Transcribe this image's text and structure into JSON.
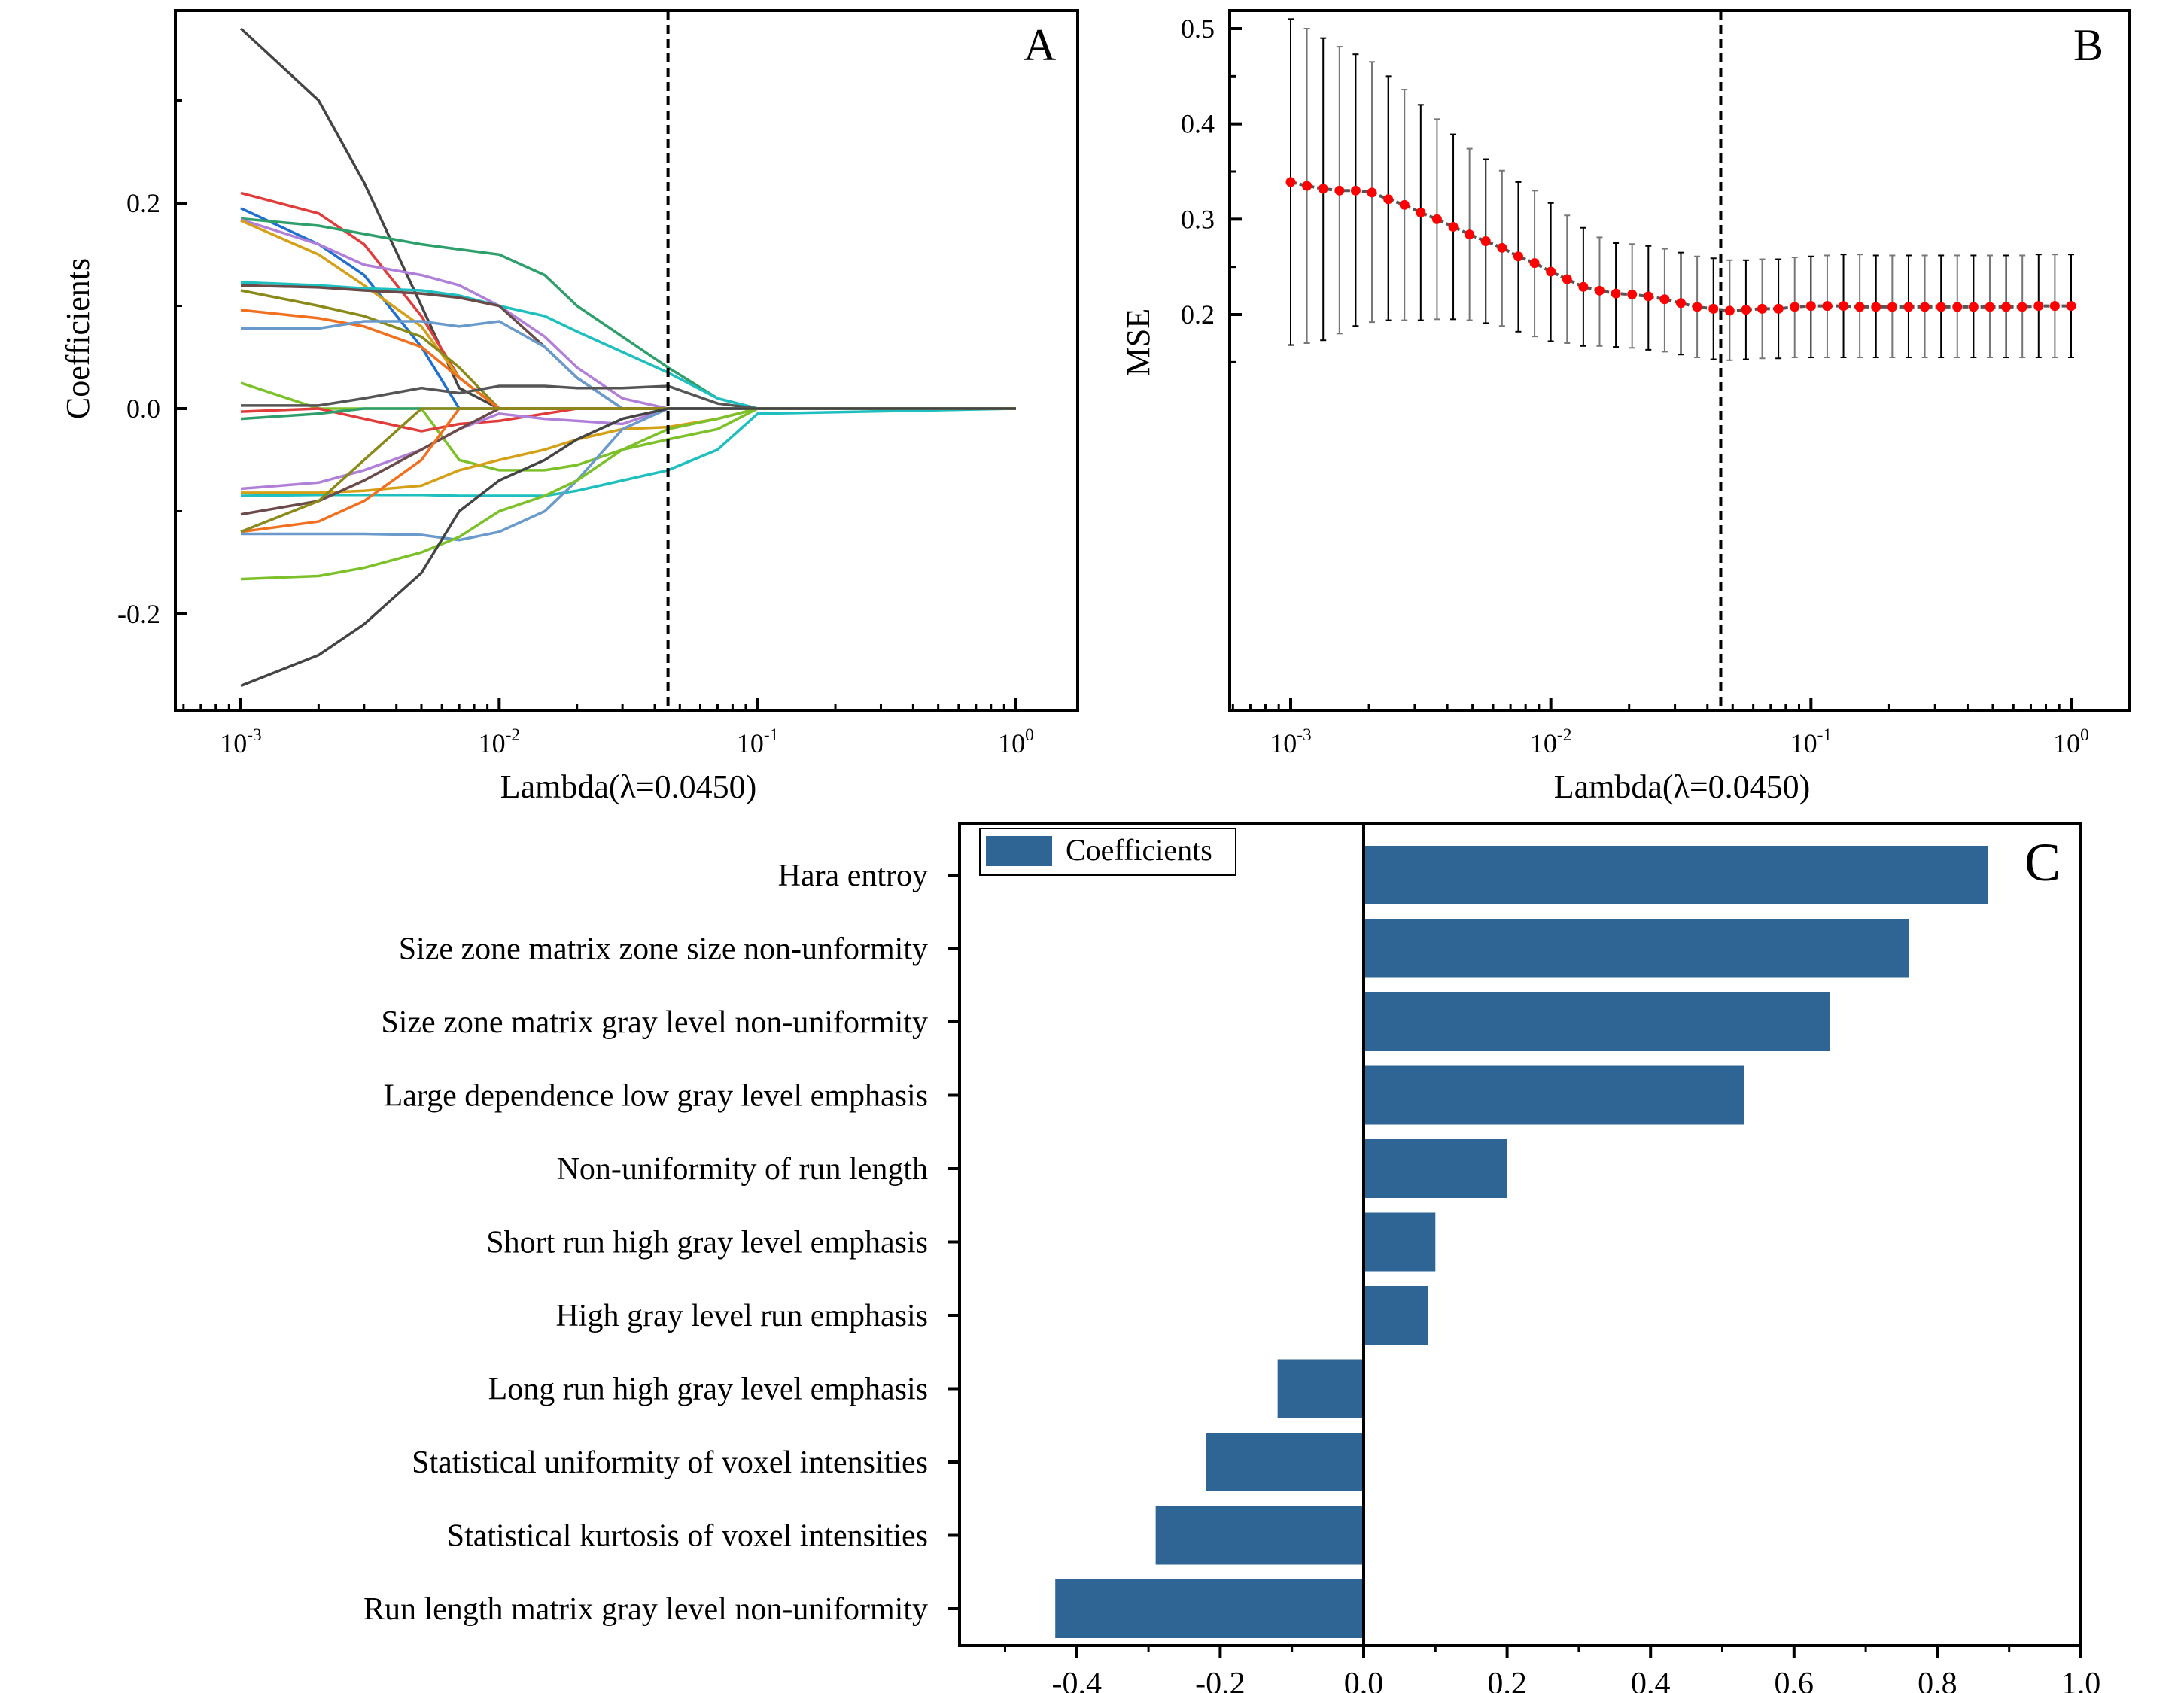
{
  "chart_data": [
    {
      "panel": "A",
      "type": "line",
      "title": "A",
      "xlabel": "Lambda(λ=0.0450)",
      "ylabel": "Coefficients",
      "xscale": "log",
      "xlim": [
        0.0006,
        1.6
      ],
      "ylim": [
        -0.3,
        0.4
      ],
      "x_ticks": [
        "10^-3",
        "10^-2",
        "10^-1",
        "10^0"
      ],
      "y_ticks": [
        "0.2",
        "0.0",
        "-0.2"
      ],
      "y_tick_values": [
        0.2,
        0.0,
        -0.2
      ],
      "vline": 0.045,
      "x": [
        0.001,
        0.002,
        0.003,
        0.005,
        0.007,
        0.01,
        0.015,
        0.02,
        0.03,
        0.045,
        0.07,
        0.1,
        1.0
      ],
      "series": [
        {
          "name": "s1",
          "color": "#444444",
          "values": [
            0.37,
            0.3,
            0.22,
            0.1,
            0.02,
            0.0,
            0.0,
            0.0,
            0.0,
            0.0,
            0.0,
            0.0,
            0.0
          ]
        },
        {
          "name": "s2",
          "color": "#e03c3c",
          "values": [
            0.21,
            0.19,
            0.16,
            0.09,
            0.03,
            0.0,
            0.0,
            0.0,
            0.0,
            0.0,
            0.0,
            0.0,
            0.0
          ]
        },
        {
          "name": "s3",
          "color": "#1f6fcf",
          "values": [
            0.195,
            0.16,
            0.13,
            0.06,
            0.0,
            0.0,
            0.0,
            0.0,
            0.0,
            0.0,
            0.0,
            0.0,
            0.0
          ]
        },
        {
          "name": "s4",
          "color": "#2e9e6a",
          "values": [
            0.185,
            0.178,
            0.17,
            0.16,
            0.155,
            0.15,
            0.13,
            0.1,
            0.07,
            0.04,
            0.01,
            0.0,
            0.0
          ]
        },
        {
          "name": "s5",
          "color": "#b07fd8",
          "values": [
            0.184,
            0.16,
            0.14,
            0.13,
            0.12,
            0.1,
            0.07,
            0.04,
            0.01,
            0.0,
            0.0,
            0.0,
            0.0
          ]
        },
        {
          "name": "s6",
          "color": "#d4a017",
          "values": [
            0.183,
            0.15,
            0.12,
            0.08,
            0.03,
            0.0,
            0.0,
            0.0,
            0.0,
            0.0,
            0.0,
            0.0,
            0.0
          ]
        },
        {
          "name": "s7",
          "color": "#1fbfbf",
          "values": [
            0.123,
            0.12,
            0.117,
            0.115,
            0.11,
            0.1,
            0.09,
            0.075,
            0.055,
            0.035,
            0.01,
            0.0,
            0.0
          ]
        },
        {
          "name": "s8",
          "color": "#6b4a4a",
          "values": [
            0.12,
            0.118,
            0.115,
            0.112,
            0.108,
            0.1,
            0.06,
            0.03,
            0.0,
            0.0,
            0.0,
            0.0,
            0.0
          ]
        },
        {
          "name": "s9",
          "color": "#8a8a1a",
          "values": [
            0.115,
            0.1,
            0.09,
            0.07,
            0.04,
            0.0,
            0.0,
            0.0,
            0.0,
            0.0,
            0.0,
            0.0,
            0.0
          ]
        },
        {
          "name": "s10",
          "color": "#f07020",
          "values": [
            0.096,
            0.088,
            0.08,
            0.06,
            0.03,
            0.0,
            0.0,
            0.0,
            0.0,
            0.0,
            0.0,
            0.0,
            0.0
          ]
        },
        {
          "name": "s11",
          "color": "#6a9acb",
          "values": [
            0.078,
            0.078,
            0.085,
            0.085,
            0.08,
            0.085,
            0.06,
            0.03,
            0.0,
            0.0,
            0.0,
            0.0,
            0.0
          ]
        },
        {
          "name": "s12",
          "color": "#7cc02a",
          "values": [
            0.025,
            0.0,
            0.0,
            0.0,
            -0.05,
            -0.06,
            -0.06,
            -0.055,
            -0.04,
            -0.03,
            -0.02,
            0.0,
            0.0
          ]
        },
        {
          "name": "s13",
          "color": "#555555",
          "values": [
            0.003,
            0.003,
            0.01,
            0.02,
            0.015,
            0.022,
            0.022,
            0.02,
            0.02,
            0.022,
            0.005,
            0.0,
            0.0
          ]
        },
        {
          "name": "s14",
          "color": "#e03c3c",
          "values": [
            -0.003,
            0.0,
            -0.01,
            -0.022,
            -0.015,
            -0.012,
            -0.005,
            0.0,
            0.0,
            0.0,
            0.0,
            0.0,
            0.0
          ]
        },
        {
          "name": "s15",
          "color": "#2e9e6a",
          "values": [
            -0.01,
            -0.005,
            0.0,
            0.0,
            0.0,
            0.0,
            0.0,
            0.0,
            0.0,
            0.0,
            0.0,
            0.0,
            0.0
          ]
        },
        {
          "name": "s16",
          "color": "#b07fd8",
          "values": [
            -0.078,
            -0.072,
            -0.06,
            -0.04,
            -0.02,
            -0.005,
            -0.01,
            -0.012,
            -0.015,
            0.0,
            0.0,
            0.0,
            0.0
          ]
        },
        {
          "name": "s17",
          "color": "#d4a017",
          "values": [
            -0.082,
            -0.082,
            -0.08,
            -0.075,
            -0.06,
            -0.05,
            -0.04,
            -0.03,
            -0.02,
            -0.018,
            -0.01,
            0.0,
            0.0
          ]
        },
        {
          "name": "s18",
          "color": "#1fbfbf",
          "values": [
            -0.085,
            -0.084,
            -0.084,
            -0.084,
            -0.085,
            -0.085,
            -0.085,
            -0.08,
            -0.07,
            -0.06,
            -0.04,
            -0.005,
            0.0
          ]
        },
        {
          "name": "s19",
          "color": "#6b4a4a",
          "values": [
            -0.103,
            -0.09,
            -0.07,
            -0.04,
            -0.02,
            0.0,
            0.0,
            0.0,
            0.0,
            0.0,
            0.0,
            0.0,
            0.0
          ]
        },
        {
          "name": "s20",
          "color": "#f07020",
          "values": [
            -0.12,
            -0.11,
            -0.09,
            -0.05,
            0.0,
            0.0,
            0.0,
            0.0,
            0.0,
            0.0,
            0.0,
            0.0,
            0.0
          ]
        },
        {
          "name": "s21",
          "color": "#8a8a1a",
          "values": [
            -0.12,
            -0.09,
            -0.05,
            0.0,
            0.0,
            0.0,
            0.0,
            0.0,
            0.0,
            0.0,
            0.0,
            0.0,
            0.0
          ]
        },
        {
          "name": "s22",
          "color": "#6a9acb",
          "values": [
            -0.122,
            -0.122,
            -0.122,
            -0.123,
            -0.128,
            -0.12,
            -0.1,
            -0.07,
            -0.02,
            0.0,
            0.0,
            0.0,
            0.0
          ]
        },
        {
          "name": "s23",
          "color": "#7cc02a",
          "values": [
            -0.166,
            -0.163,
            -0.155,
            -0.14,
            -0.125,
            -0.1,
            -0.085,
            -0.07,
            -0.04,
            -0.02,
            -0.01,
            0.0,
            0.0
          ]
        },
        {
          "name": "s24",
          "color": "#444444",
          "values": [
            -0.27,
            -0.24,
            -0.21,
            -0.16,
            -0.1,
            -0.07,
            -0.05,
            -0.03,
            -0.01,
            0.0,
            0.0,
            0.0,
            0.0
          ]
        }
      ]
    },
    {
      "panel": "B",
      "type": "line",
      "title": "B",
      "xlabel": "Lambda(λ=0.0450)",
      "ylabel": "MSE",
      "xscale": "log",
      "xlim": [
        0.0006,
        1.6
      ],
      "ylim": [
        0.14,
        0.52
      ],
      "x_ticks": [
        "10^-3",
        "10^-2",
        "10^-1",
        "10^0"
      ],
      "y_ticks": [
        "0.5",
        "0.4",
        "0.3",
        "0.2"
      ],
      "y_tick_values": [
        0.5,
        0.4,
        0.3,
        0.2
      ],
      "vline": 0.045,
      "x_log_start": -3,
      "x_log_end": 0,
      "mse": [
        0.339,
        0.335,
        0.332,
        0.33,
        0.33,
        0.328,
        0.321,
        0.315,
        0.307,
        0.3,
        0.292,
        0.284,
        0.277,
        0.27,
        0.261,
        0.254,
        0.245,
        0.237,
        0.229,
        0.225,
        0.222,
        0.221,
        0.219,
        0.216,
        0.212,
        0.208,
        0.206,
        0.204,
        0.205,
        0.206,
        0.206,
        0.208,
        0.209,
        0.209,
        0.209,
        0.208,
        0.208,
        0.208,
        0.208,
        0.208,
        0.208,
        0.208,
        0.208,
        0.208,
        0.208,
        0.208,
        0.209,
        0.209,
        0.209
      ],
      "upper": [
        0.51,
        0.5,
        0.49,
        0.481,
        0.473,
        0.465,
        0.45,
        0.436,
        0.42,
        0.405,
        0.389,
        0.374,
        0.363,
        0.351,
        0.339,
        0.33,
        0.317,
        0.304,
        0.291,
        0.281,
        0.275,
        0.274,
        0.272,
        0.269,
        0.265,
        0.261,
        0.259,
        0.257,
        0.257,
        0.258,
        0.258,
        0.26,
        0.261,
        0.262,
        0.263,
        0.263,
        0.262,
        0.262,
        0.262,
        0.262,
        0.262,
        0.262,
        0.262,
        0.262,
        0.262,
        0.262,
        0.263,
        0.263,
        0.263
      ],
      "lower": [
        0.168,
        0.17,
        0.173,
        0.18,
        0.188,
        0.192,
        0.194,
        0.194,
        0.194,
        0.195,
        0.195,
        0.194,
        0.191,
        0.188,
        0.182,
        0.177,
        0.172,
        0.17,
        0.167,
        0.167,
        0.166,
        0.165,
        0.163,
        0.161,
        0.158,
        0.155,
        0.153,
        0.152,
        0.153,
        0.154,
        0.154,
        0.155,
        0.155,
        0.155,
        0.155,
        0.155,
        0.155,
        0.155,
        0.155,
        0.155,
        0.155,
        0.155,
        0.155,
        0.155,
        0.155,
        0.155,
        0.155,
        0.155,
        0.155
      ],
      "point_color": "#ff0000",
      "line_color": "#555555"
    },
    {
      "panel": "C",
      "type": "bar",
      "orientation": "horizontal",
      "title": "C",
      "legend": "Coefficients",
      "legend_position": "top-left",
      "bar_color": "#2e6594",
      "xlim": [
        -0.56,
        1.0
      ],
      "x_ticks": [
        "-0.4",
        "-0.2",
        "0.0",
        "0.2",
        "0.4",
        "0.6",
        "0.8",
        "1.0"
      ],
      "x_tick_values": [
        -0.4,
        -0.2,
        0.0,
        0.2,
        0.4,
        0.6,
        0.8,
        1.0
      ],
      "categories": [
        "Hara entroy",
        "Size zone matrix zone size non-unformity",
        "Size zone matrix gray level non-uniformity",
        "Large dependence low gray level emphasis",
        "Non-uniformity of run length",
        "Short run high gray level emphasis",
        "High gray level run emphasis",
        "Long run high gray level emphasis",
        "Statistical uniformity of voxel intensities",
        "Statistical kurtosis of voxel intensities",
        "Run length matrix gray level non-uniformity"
      ],
      "values": [
        0.87,
        0.76,
        0.65,
        0.53,
        0.2,
        0.1,
        0.09,
        -0.12,
        -0.22,
        -0.29,
        -0.43
      ]
    }
  ]
}
